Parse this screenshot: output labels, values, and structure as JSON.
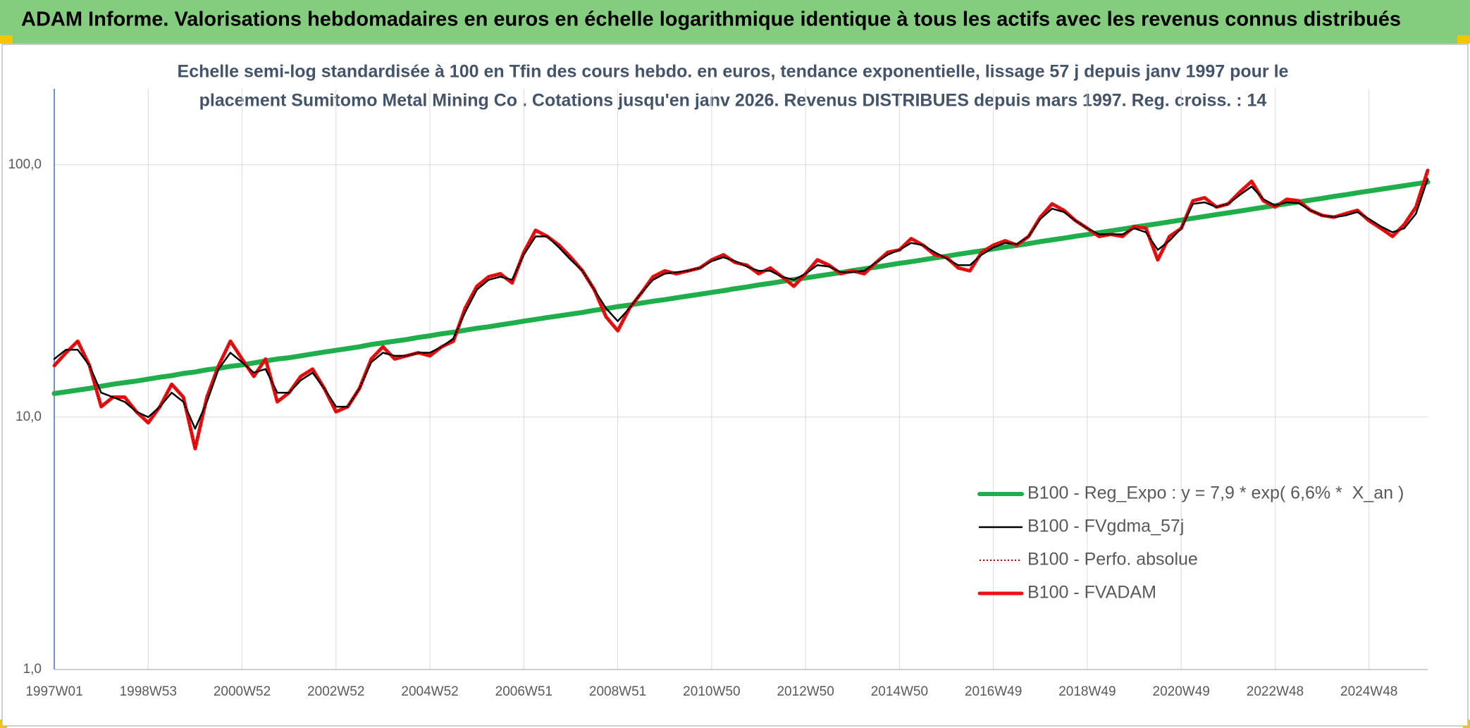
{
  "chart_data": {
    "type": "line",
    "title": "ADAM Informe. Valorisations hebdomadaires en euros en échelle logarithmique identique à tous les actifs avec les revenus connus distribués",
    "subtitle": [
      "Echelle semi-log standardisée à 100 en Tfin des cours hebdo. en euros, tendance exponentielle, lissage 57 j depuis janv 1997 pour le",
      "placement Sumitomo Metal Mining Co . Cotations jusqu'en janv 2026. Revenus DISTRIBUES depuis mars 1997. Reg. croiss. : 14"
    ],
    "categories": [
      "1997W01",
      null,
      null,
      null,
      null,
      null,
      null,
      null,
      "1998W53",
      null,
      null,
      null,
      null,
      null,
      null,
      null,
      "2000W52",
      null,
      null,
      null,
      null,
      null,
      null,
      null,
      "2002W52",
      null,
      null,
      null,
      null,
      null,
      null,
      null,
      "2004W52",
      null,
      null,
      null,
      null,
      null,
      null,
      null,
      "2006W51",
      null,
      null,
      null,
      null,
      null,
      null,
      null,
      "2008W51",
      null,
      null,
      null,
      null,
      null,
      null,
      null,
      "2010W50",
      null,
      null,
      null,
      null,
      null,
      null,
      null,
      "2012W50",
      null,
      null,
      null,
      null,
      null,
      null,
      null,
      "2014W50",
      null,
      null,
      null,
      null,
      null,
      null,
      null,
      "2016W49",
      null,
      null,
      null,
      null,
      null,
      null,
      null,
      "2018W49",
      null,
      null,
      null,
      null,
      null,
      null,
      null,
      "2020W49",
      null,
      null,
      null,
      null,
      null,
      null,
      null,
      "2022W48",
      null,
      null,
      null,
      null,
      null,
      null,
      null,
      "2024W48",
      null,
      null,
      null,
      null,
      null
    ],
    "series": [
      {
        "name": "B100 - Reg_Expo : y = 7,9 * exp( 6,6% *  X_an )",
        "color": "#1fae4b",
        "style": "solid",
        "values": [
          12.4,
          12.6,
          12.8,
          13.0,
          13.25,
          13.5,
          13.7,
          13.9,
          14.15,
          14.4,
          14.6,
          14.9,
          15.1,
          15.4,
          15.6,
          15.9,
          16.1,
          16.4,
          16.7,
          17.0,
          17.2,
          17.5,
          17.8,
          18.1,
          18.4,
          18.7,
          19.0,
          19.4,
          19.7,
          20.0,
          20.3,
          20.7,
          21.0,
          21.4,
          21.7,
          22.1,
          22.5,
          22.8,
          23.2,
          23.6,
          24.0,
          24.4,
          24.8,
          25.2,
          25.6,
          26.0,
          26.5,
          26.9,
          27.4,
          27.8,
          28.3,
          28.8,
          29.2,
          29.7,
          30.2,
          30.7,
          31.2,
          31.7,
          32.3,
          32.8,
          33.4,
          33.9,
          34.5,
          35.1,
          35.6,
          36.2,
          36.8,
          37.4,
          38.1,
          38.7,
          39.3,
          40.0,
          40.7,
          41.3,
          42.0,
          42.7,
          43.4,
          44.2,
          44.9,
          45.6,
          46.4,
          47.2,
          47.9,
          48.7,
          49.6,
          50.4,
          51.2,
          52.1,
          52.9,
          53.8,
          54.7,
          55.6,
          56.6,
          57.5,
          58.4,
          59.4,
          60.4,
          61.4,
          62.4,
          63.5,
          64.5,
          65.6,
          66.7,
          67.8,
          68.9,
          70.1,
          71.2,
          72.4,
          73.6,
          74.9,
          76.1,
          77.4,
          78.7,
          80.0,
          81.3,
          82.6,
          84.0,
          85.4
        ]
      },
      {
        "name": "B100 - FVgdma_57j",
        "color": "#000000",
        "style": "solid",
        "values": [
          17,
          18.5,
          18.5,
          16,
          12.5,
          12,
          11.5,
          10.5,
          10,
          11,
          12.5,
          11.5,
          9,
          11.5,
          15.5,
          18,
          16.5,
          15,
          15.5,
          12.5,
          12.5,
          14,
          15,
          13,
          11,
          11,
          13,
          16.5,
          18,
          17.5,
          17.5,
          18,
          18,
          19,
          20.5,
          26,
          32,
          35,
          36,
          35,
          44,
          52,
          52,
          47,
          42,
          38,
          32,
          27,
          24,
          27,
          31,
          35,
          37,
          37.5,
          38,
          39,
          41.5,
          43,
          41.5,
          39.5,
          38,
          38,
          36,
          35,
          37,
          40,
          39.5,
          37.5,
          37.5,
          38,
          41,
          44,
          46,
          49,
          48,
          45,
          42.5,
          40,
          40,
          44,
          47,
          49,
          48.5,
          52,
          61,
          67,
          65,
          60,
          56,
          53,
          53,
          53,
          56,
          54,
          46,
          50,
          56,
          70,
          71,
          68,
          70,
          76,
          82,
          73,
          69,
          71,
          70.5,
          66,
          63,
          62,
          63,
          65,
          61,
          57,
          54,
          56,
          64,
          88
        ]
      },
      {
        "name": "B100 - Perfo. absolue",
        "color": "#c00000",
        "style": "dotted",
        "values": [
          16,
          18,
          20,
          16,
          11,
          12,
          12,
          10.5,
          9.5,
          11,
          13.5,
          12,
          7.5,
          12,
          16,
          20,
          17,
          14.5,
          17,
          11.5,
          12.5,
          14.5,
          15.5,
          13,
          10.5,
          11,
          13,
          17,
          19,
          17,
          17.5,
          18,
          17.5,
          19,
          20,
          27,
          33,
          36,
          37,
          34,
          45,
          55,
          52,
          48,
          43,
          38,
          32,
          25,
          22,
          27,
          31,
          36,
          38,
          37,
          38,
          39,
          42,
          44,
          41,
          40,
          37,
          39,
          36,
          33,
          37,
          42,
          40,
          37,
          38,
          37,
          41,
          45,
          46,
          51,
          48,
          44,
          43,
          39,
          38,
          45,
          48,
          50,
          48,
          52,
          62,
          70,
          66,
          60,
          56,
          52,
          53,
          52,
          57,
          56,
          42,
          52,
          56,
          72,
          74,
          68,
          70,
          78,
          86,
          72,
          68,
          73,
          72,
          66,
          63,
          62,
          64,
          66,
          60,
          56,
          52,
          58,
          68,
          95
        ]
      },
      {
        "name": "B100 - FVADAM",
        "color": "#ee1111",
        "style": "solid",
        "values": [
          16,
          18,
          20,
          16,
          11,
          12,
          12,
          10.5,
          9.5,
          11,
          13.5,
          12,
          7.5,
          12,
          16,
          20,
          17,
          14.5,
          17,
          11.5,
          12.5,
          14.5,
          15.5,
          13,
          10.5,
          11,
          13,
          17,
          19,
          17,
          17.5,
          18,
          17.5,
          19,
          20,
          27,
          33,
          36,
          37,
          34,
          45,
          55,
          52,
          48,
          43,
          38,
          32,
          25,
          22,
          27,
          31,
          36,
          38,
          37,
          38,
          39,
          42,
          44,
          41,
          40,
          37,
          39,
          36,
          33,
          37,
          42,
          40,
          37,
          38,
          37,
          41,
          45,
          46,
          51,
          48,
          44,
          43,
          39,
          38,
          45,
          48,
          50,
          48,
          52,
          62,
          70,
          66,
          60,
          56,
          52,
          53,
          52,
          57,
          56,
          42,
          52,
          56,
          72,
          74,
          68,
          70,
          78,
          86,
          72,
          68,
          73,
          72,
          66,
          63,
          62,
          64,
          66,
          60,
          56,
          52,
          58,
          68,
          95
        ]
      }
    ],
    "ylim": [
      1,
      200
    ],
    "log_y": true,
    "yticks": [
      {
        "value": 1,
        "label": "1,0"
      },
      {
        "value": 10,
        "label": "10,0"
      },
      {
        "value": 100,
        "label": "100,0"
      }
    ],
    "grid": true,
    "legend": "lower right"
  }
}
